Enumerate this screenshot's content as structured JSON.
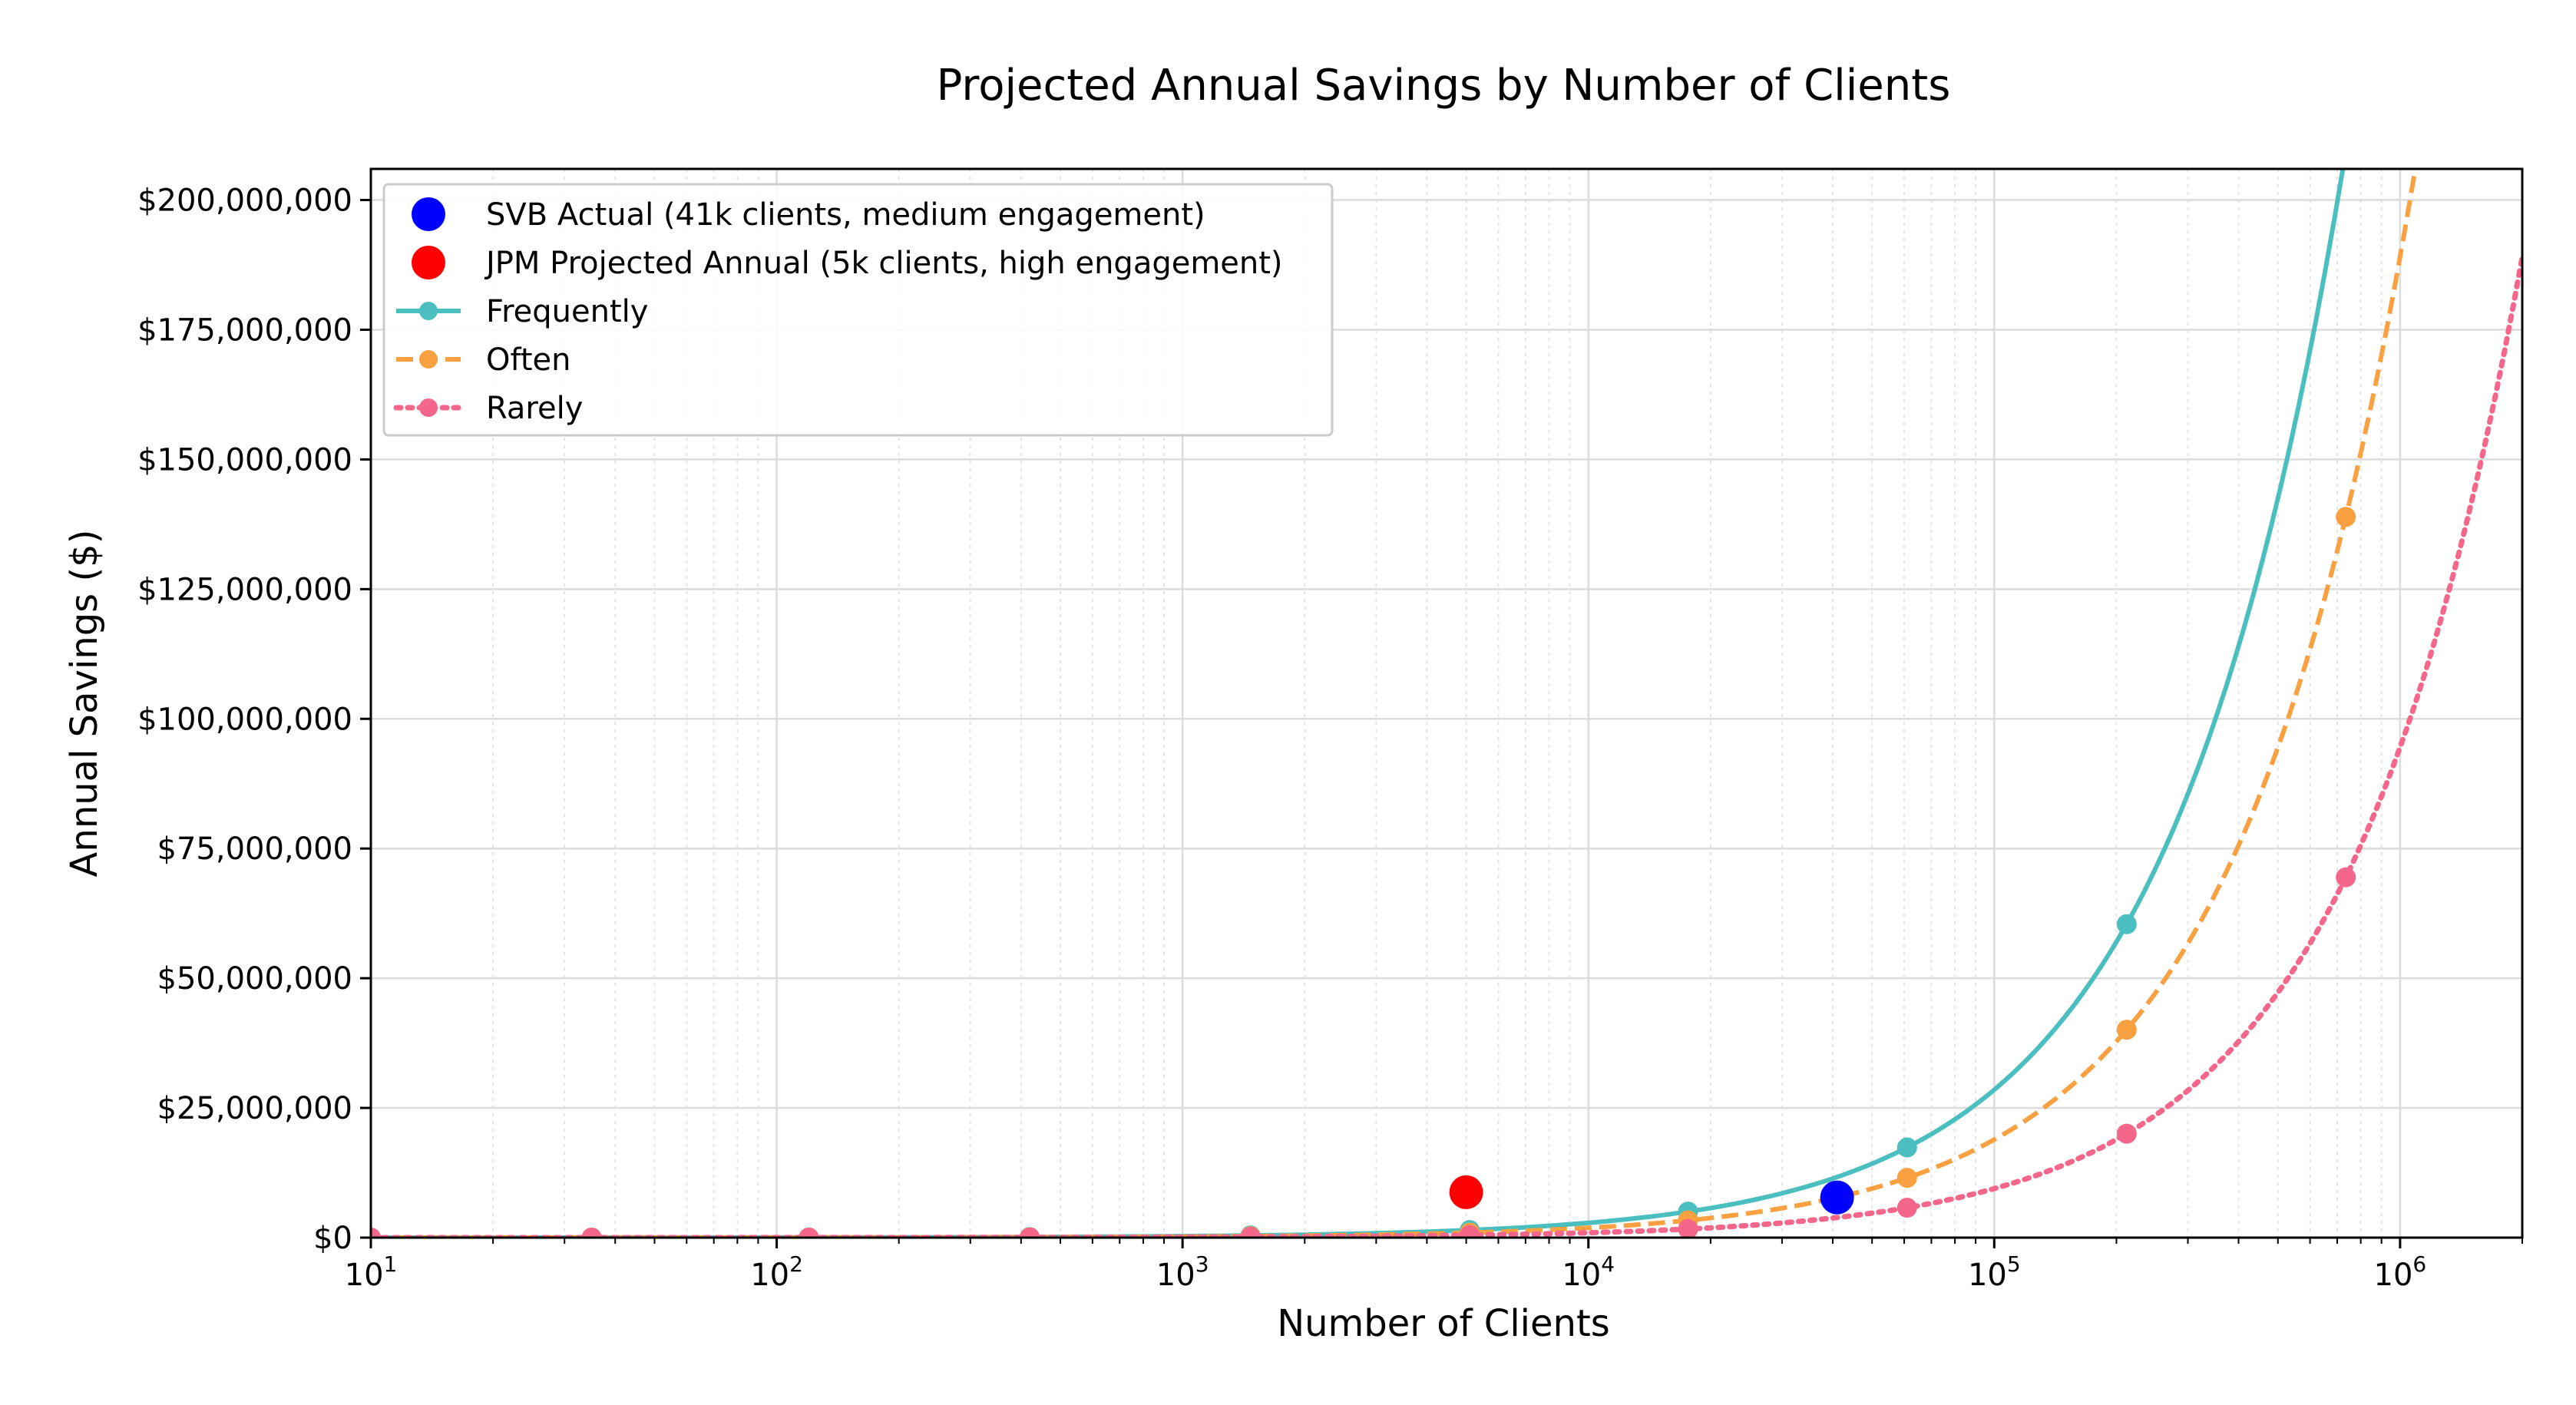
{
  "chart_data": {
    "type": "line",
    "title": "Projected Annual Savings by Number of Clients",
    "xlabel": "Number of Clients",
    "ylabel": "Annual Savings ($)",
    "xscale": "log",
    "xlim": [
      10,
      2000000
    ],
    "ylim": [
      0,
      206000000
    ],
    "grid": true,
    "legend_position": "top-left",
    "x_tick_labels": [
      {
        "base": "10",
        "exp": "1",
        "value": 10
      },
      {
        "base": "10",
        "exp": "2",
        "value": 100
      },
      {
        "base": "10",
        "exp": "3",
        "value": 1000
      },
      {
        "base": "10",
        "exp": "4",
        "value": 10000
      },
      {
        "base": "10",
        "exp": "5",
        "value": 100000
      },
      {
        "base": "10",
        "exp": "6",
        "value": 1000000
      }
    ],
    "y_tick_labels": [
      {
        "label": "$0",
        "value": 0
      },
      {
        "label": "$25,000,000",
        "value": 25000000
      },
      {
        "label": "$50,000,000",
        "value": 50000000
      },
      {
        "label": "$75,000,000",
        "value": 75000000
      },
      {
        "label": "$100,000,000",
        "value": 100000000
      },
      {
        "label": "$125,000,000",
        "value": 125000000
      },
      {
        "label": "$150,000,000",
        "value": 150000000
      },
      {
        "label": "$175,000,000",
        "value": 175000000
      },
      {
        "label": "$200,000,000",
        "value": 200000000
      }
    ],
    "series": [
      {
        "name": "Frequently",
        "color": "#4bbfbf",
        "style": "solid",
        "savings_per_client": 285,
        "markers_x": [
          10,
          35,
          120,
          420,
          1470,
          5100,
          17600,
          61000,
          212000,
          735000
        ]
      },
      {
        "name": "Often",
        "color": "#f9a040",
        "style": "dashed",
        "savings_per_client": 189,
        "markers_x": [
          10,
          35,
          120,
          420,
          1470,
          5100,
          17600,
          61000,
          212000,
          735000
        ]
      },
      {
        "name": "Rarely",
        "color": "#f5678a",
        "style": "dotted",
        "savings_per_client": 94.5,
        "markers_x": [
          10,
          35,
          120,
          420,
          1470,
          5100,
          17600,
          61000,
          212000,
          735000
        ]
      }
    ],
    "points": [
      {
        "name": "SVB Actual (41k clients, medium engagement)",
        "x": 41000,
        "y": 7750000,
        "color": "#0000ff"
      },
      {
        "name": "JPM Projected Annual (5k clients, high engagement)",
        "x": 5000,
        "y": 8750000,
        "color": "#ff0000"
      }
    ]
  }
}
